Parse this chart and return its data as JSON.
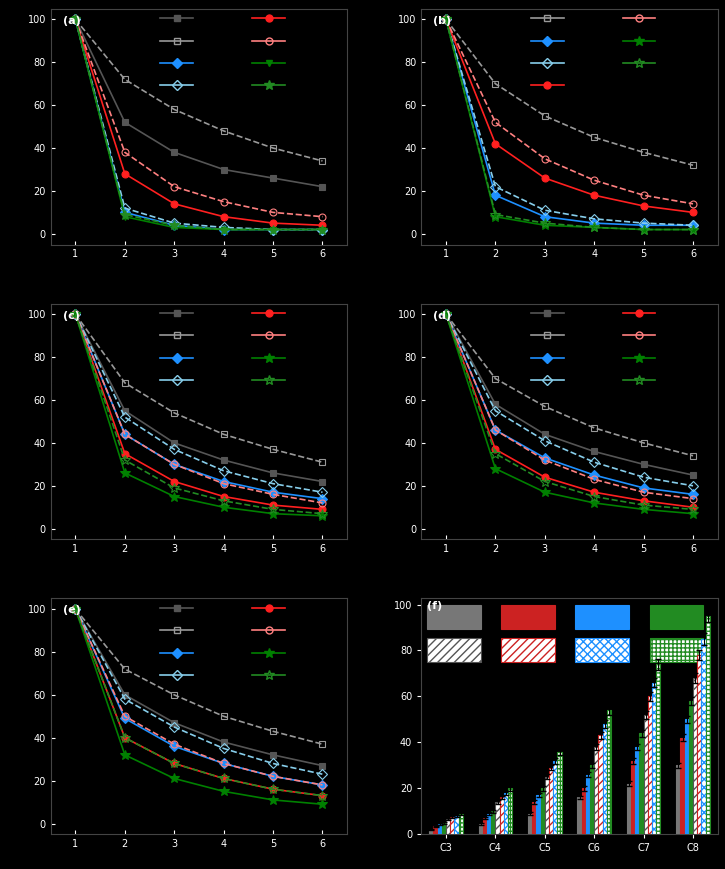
{
  "background": "#000000",
  "x_vals": [
    1,
    2,
    3,
    4,
    5,
    6
  ],
  "panel_a": {
    "series": [
      {
        "y": [
          100,
          52,
          38,
          30,
          26,
          22
        ],
        "color": "#555555",
        "marker": "s",
        "ls": "-",
        "lw": 1.2,
        "ms": 5,
        "mfc": "#555555"
      },
      {
        "y": [
          100,
          72,
          58,
          48,
          40,
          34
        ],
        "color": "#999999",
        "marker": "s",
        "ls": "--",
        "lw": 1.2,
        "ms": 5,
        "mfc": "none"
      },
      {
        "y": [
          100,
          10,
          4,
          2,
          2,
          2
        ],
        "color": "#1E90FF",
        "marker": "D",
        "ls": "-",
        "lw": 1.2,
        "ms": 5,
        "mfc": "#1E90FF"
      },
      {
        "y": [
          100,
          12,
          5,
          3,
          2,
          2
        ],
        "color": "#87CEEB",
        "marker": "D",
        "ls": "--",
        "lw": 1.2,
        "ms": 5,
        "mfc": "none"
      },
      {
        "y": [
          100,
          28,
          14,
          8,
          5,
          4
        ],
        "color": "#FF2020",
        "marker": "o",
        "ls": "-",
        "lw": 1.2,
        "ms": 5,
        "mfc": "#FF2020"
      },
      {
        "y": [
          100,
          38,
          22,
          15,
          10,
          8
        ],
        "color": "#FF8080",
        "marker": "o",
        "ls": "--",
        "lw": 1.2,
        "ms": 5,
        "mfc": "none"
      },
      {
        "y": [
          100,
          8,
          3,
          2,
          2,
          2
        ],
        "color": "#008000",
        "marker": "v",
        "ls": "-",
        "lw": 1.2,
        "ms": 5,
        "mfc": "#008000"
      },
      {
        "y": [
          100,
          9,
          4,
          2,
          2,
          2
        ],
        "color": "#228B22",
        "marker": "*",
        "ls": "--",
        "lw": 1.2,
        "ms": 7,
        "mfc": "#228B22"
      }
    ],
    "legend": [
      {
        "color": "#555555",
        "marker": "s",
        "mfc": "#555555"
      },
      {
        "color": "#999999",
        "marker": "s",
        "mfc": "none"
      },
      {
        "color": "#1E90FF",
        "marker": "D",
        "mfc": "#1E90FF"
      },
      {
        "color": "#87CEEB",
        "marker": "D",
        "mfc": "none"
      },
      {
        "color": "#FF2020",
        "marker": "o",
        "mfc": "#FF2020"
      },
      {
        "color": "#FF8080",
        "marker": "o",
        "mfc": "none"
      },
      {
        "color": "#008000",
        "marker": "v",
        "mfc": "#008000"
      },
      {
        "color": "#228B22",
        "marker": "*",
        "mfc": "#228B22"
      }
    ]
  },
  "panel_b": {
    "series": [
      {
        "y": [
          100,
          70,
          55,
          45,
          38,
          32
        ],
        "color": "#999999",
        "marker": "s",
        "ls": "--",
        "lw": 1.2,
        "ms": 5,
        "mfc": "none"
      },
      {
        "y": [
          100,
          18,
          8,
          5,
          4,
          4
        ],
        "color": "#1E90FF",
        "marker": "D",
        "ls": "-",
        "lw": 1.2,
        "ms": 5,
        "mfc": "#1E90FF"
      },
      {
        "y": [
          100,
          22,
          11,
          7,
          5,
          4
        ],
        "color": "#87CEEB",
        "marker": "D",
        "ls": "--",
        "lw": 1.2,
        "ms": 5,
        "mfc": "none"
      },
      {
        "y": [
          100,
          42,
          26,
          18,
          13,
          10
        ],
        "color": "#FF2020",
        "marker": "o",
        "ls": "-",
        "lw": 1.2,
        "ms": 5,
        "mfc": "#FF2020"
      },
      {
        "y": [
          100,
          52,
          35,
          25,
          18,
          14
        ],
        "color": "#FF8080",
        "marker": "o",
        "ls": "--",
        "lw": 1.2,
        "ms": 5,
        "mfc": "none"
      },
      {
        "y": [
          100,
          8,
          4,
          3,
          2,
          2
        ],
        "color": "#008000",
        "marker": "*",
        "ls": "-",
        "lw": 1.2,
        "ms": 7,
        "mfc": "#008000"
      },
      {
        "y": [
          100,
          9,
          5,
          3,
          2,
          2
        ],
        "color": "#228B22",
        "marker": "*",
        "ls": "--",
        "lw": 1.2,
        "ms": 7,
        "mfc": "none"
      }
    ],
    "legend": [
      {
        "color": "#999999",
        "marker": "s",
        "mfc": "none"
      },
      {
        "color": "#1E90FF",
        "marker": "D",
        "mfc": "#1E90FF"
      },
      {
        "color": "#87CEEB",
        "marker": "D",
        "mfc": "none"
      },
      {
        "color": "#FF2020",
        "marker": "o",
        "mfc": "#FF2020"
      },
      {
        "color": "#FF8080",
        "marker": "o",
        "mfc": "none"
      },
      {
        "color": "#008000",
        "marker": "*",
        "mfc": "#008000"
      },
      {
        "color": "#228B22",
        "marker": "*",
        "mfc": "none"
      }
    ]
  },
  "panel_c": {
    "series": [
      {
        "y": [
          100,
          55,
          40,
          32,
          26,
          22
        ],
        "color": "#555555",
        "marker": "s",
        "ls": "-",
        "lw": 1.2,
        "ms": 5,
        "mfc": "#555555"
      },
      {
        "y": [
          100,
          68,
          54,
          44,
          37,
          31
        ],
        "color": "#999999",
        "marker": "s",
        "ls": "--",
        "lw": 1.2,
        "ms": 5,
        "mfc": "none"
      },
      {
        "y": [
          100,
          44,
          30,
          22,
          17,
          14
        ],
        "color": "#1E90FF",
        "marker": "D",
        "ls": "-",
        "lw": 1.2,
        "ms": 5,
        "mfc": "#1E90FF"
      },
      {
        "y": [
          100,
          52,
          37,
          27,
          21,
          17
        ],
        "color": "#87CEEB",
        "marker": "D",
        "ls": "--",
        "lw": 1.2,
        "ms": 5,
        "mfc": "none"
      },
      {
        "y": [
          100,
          35,
          22,
          15,
          11,
          9
        ],
        "color": "#FF2020",
        "marker": "o",
        "ls": "-",
        "lw": 1.2,
        "ms": 5,
        "mfc": "#FF2020"
      },
      {
        "y": [
          100,
          44,
          30,
          21,
          16,
          12
        ],
        "color": "#FF8080",
        "marker": "o",
        "ls": "--",
        "lw": 1.2,
        "ms": 5,
        "mfc": "none"
      },
      {
        "y": [
          100,
          26,
          15,
          10,
          7,
          6
        ],
        "color": "#008000",
        "marker": "*",
        "ls": "-",
        "lw": 1.2,
        "ms": 7,
        "mfc": "#008000"
      },
      {
        "y": [
          100,
          32,
          19,
          13,
          9,
          7
        ],
        "color": "#228B22",
        "marker": "*",
        "ls": "--",
        "lw": 1.2,
        "ms": 7,
        "mfc": "none"
      }
    ],
    "legend": [
      {
        "color": "#555555",
        "marker": "s",
        "mfc": "#555555"
      },
      {
        "color": "#999999",
        "marker": "s",
        "mfc": "none"
      },
      {
        "color": "#1E90FF",
        "marker": "D",
        "mfc": "#1E90FF"
      },
      {
        "color": "#87CEEB",
        "marker": "D",
        "mfc": "none"
      },
      {
        "color": "#FF2020",
        "marker": "o",
        "mfc": "#FF2020"
      },
      {
        "color": "#FF8080",
        "marker": "o",
        "mfc": "none"
      },
      {
        "color": "#008000",
        "marker": "*",
        "mfc": "#008000"
      },
      {
        "color": "#228B22",
        "marker": "*",
        "mfc": "none"
      }
    ]
  },
  "panel_d": {
    "series": [
      {
        "y": [
          100,
          58,
          44,
          36,
          30,
          25
        ],
        "color": "#555555",
        "marker": "s",
        "ls": "-",
        "lw": 1.2,
        "ms": 5,
        "mfc": "#555555"
      },
      {
        "y": [
          100,
          70,
          57,
          47,
          40,
          34
        ],
        "color": "#999999",
        "marker": "s",
        "ls": "--",
        "lw": 1.2,
        "ms": 5,
        "mfc": "none"
      },
      {
        "y": [
          100,
          46,
          33,
          25,
          19,
          16
        ],
        "color": "#1E90FF",
        "marker": "D",
        "ls": "-",
        "lw": 1.2,
        "ms": 5,
        "mfc": "#1E90FF"
      },
      {
        "y": [
          100,
          55,
          41,
          31,
          24,
          20
        ],
        "color": "#87CEEB",
        "marker": "D",
        "ls": "--",
        "lw": 1.2,
        "ms": 5,
        "mfc": "none"
      },
      {
        "y": [
          100,
          37,
          24,
          17,
          13,
          10
        ],
        "color": "#FF2020",
        "marker": "o",
        "ls": "-",
        "lw": 1.2,
        "ms": 5,
        "mfc": "#FF2020"
      },
      {
        "y": [
          100,
          46,
          32,
          23,
          17,
          14
        ],
        "color": "#FF8080",
        "marker": "o",
        "ls": "--",
        "lw": 1.2,
        "ms": 5,
        "mfc": "none"
      },
      {
        "y": [
          100,
          28,
          17,
          12,
          9,
          7
        ],
        "color": "#008000",
        "marker": "*",
        "ls": "-",
        "lw": 1.2,
        "ms": 7,
        "mfc": "#008000"
      },
      {
        "y": [
          100,
          35,
          22,
          15,
          11,
          9
        ],
        "color": "#228B22",
        "marker": "*",
        "ls": "--",
        "lw": 1.2,
        "ms": 7,
        "mfc": "none"
      }
    ],
    "legend": [
      {
        "color": "#555555",
        "marker": "s",
        "mfc": "#555555"
      },
      {
        "color": "#999999",
        "marker": "s",
        "mfc": "none"
      },
      {
        "color": "#1E90FF",
        "marker": "D",
        "mfc": "#1E90FF"
      },
      {
        "color": "#87CEEB",
        "marker": "D",
        "mfc": "none"
      },
      {
        "color": "#FF2020",
        "marker": "o",
        "mfc": "#FF2020"
      },
      {
        "color": "#FF8080",
        "marker": "o",
        "mfc": "none"
      },
      {
        "color": "#008000",
        "marker": "*",
        "mfc": "#008000"
      },
      {
        "color": "#228B22",
        "marker": "*",
        "mfc": "none"
      }
    ]
  },
  "panel_e": {
    "series": [
      {
        "y": [
          100,
          60,
          47,
          38,
          32,
          27
        ],
        "color": "#555555",
        "marker": "s",
        "ls": "-",
        "lw": 1.2,
        "ms": 5,
        "mfc": "#555555"
      },
      {
        "y": [
          100,
          72,
          60,
          50,
          43,
          37
        ],
        "color": "#999999",
        "marker": "s",
        "ls": "--",
        "lw": 1.2,
        "ms": 5,
        "mfc": "none"
      },
      {
        "y": [
          100,
          49,
          36,
          28,
          22,
          18
        ],
        "color": "#1E90FF",
        "marker": "D",
        "ls": "-",
        "lw": 1.2,
        "ms": 5,
        "mfc": "#1E90FF"
      },
      {
        "y": [
          100,
          58,
          45,
          35,
          28,
          23
        ],
        "color": "#87CEEB",
        "marker": "D",
        "ls": "--",
        "lw": 1.2,
        "ms": 5,
        "mfc": "none"
      },
      {
        "y": [
          100,
          40,
          28,
          21,
          16,
          13
        ],
        "color": "#FF2020",
        "marker": "o",
        "ls": "-",
        "lw": 1.2,
        "ms": 5,
        "mfc": "#FF2020"
      },
      {
        "y": [
          100,
          50,
          37,
          28,
          22,
          18
        ],
        "color": "#FF8080",
        "marker": "o",
        "ls": "--",
        "lw": 1.2,
        "ms": 5,
        "mfc": "none"
      },
      {
        "y": [
          100,
          32,
          21,
          15,
          11,
          9
        ],
        "color": "#008000",
        "marker": "*",
        "ls": "-",
        "lw": 1.2,
        "ms": 7,
        "mfc": "#008000"
      },
      {
        "y": [
          100,
          40,
          28,
          21,
          16,
          13
        ],
        "color": "#228B22",
        "marker": "*",
        "ls": "--",
        "lw": 1.2,
        "ms": 7,
        "mfc": "none"
      }
    ],
    "legend": [
      {
        "color": "#555555",
        "marker": "s",
        "mfc": "#555555"
      },
      {
        "color": "#999999",
        "marker": "s",
        "mfc": "none"
      },
      {
        "color": "#1E90FF",
        "marker": "D",
        "mfc": "#1E90FF"
      },
      {
        "color": "#87CEEB",
        "marker": "D",
        "mfc": "none"
      },
      {
        "color": "#FF2020",
        "marker": "o",
        "mfc": "#FF2020"
      },
      {
        "color": "#FF8080",
        "marker": "o",
        "mfc": "none"
      },
      {
        "color": "#008000",
        "marker": "*",
        "mfc": "#008000"
      },
      {
        "color": "#228B22",
        "marker": "*",
        "mfc": "none"
      }
    ]
  },
  "bar_x_labels": [
    "C3",
    "C4",
    "C5",
    "C6",
    "C7",
    "C8"
  ],
  "bar_groups": [
    {
      "color": "#777777",
      "hatch": "",
      "facecolor": "#777777",
      "values": [
        2.0,
        4.5,
        9.0,
        16.0,
        22.0,
        30.0
      ],
      "err": [
        0.2,
        0.4,
        0.6,
        0.8,
        1.0,
        1.2
      ]
    },
    {
      "color": "#CC2222",
      "hatch": "",
      "facecolor": "#CC2222",
      "values": [
        3.5,
        7.0,
        14.0,
        20.0,
        32.0,
        42.0
      ],
      "err": [
        0.3,
        0.5,
        0.8,
        1.0,
        1.3,
        1.5
      ]
    },
    {
      "color": "#1E90FF",
      "hatch": "",
      "facecolor": "#1E90FF",
      "values": [
        4.5,
        9.0,
        17.0,
        26.0,
        38.0,
        50.0
      ],
      "err": [
        0.3,
        0.6,
        0.9,
        1.1,
        1.4,
        1.6
      ]
    },
    {
      "color": "#228B22",
      "hatch": "",
      "facecolor": "#228B22",
      "values": [
        5.0,
        10.0,
        20.0,
        30.0,
        44.0,
        58.0
      ],
      "err": [
        0.4,
        0.6,
        1.0,
        1.2,
        1.5,
        1.8
      ]
    },
    {
      "color": "#555555",
      "hatch": "////",
      "facecolor": "white",
      "values": [
        6.5,
        14.0,
        25.0,
        38.0,
        52.0,
        68.0
      ],
      "err": [
        0.4,
        0.7,
        1.1,
        1.4,
        1.7,
        2.0
      ]
    },
    {
      "color": "#CC2222",
      "hatch": "////",
      "facecolor": "white",
      "values": [
        7.5,
        16.0,
        29.0,
        43.0,
        60.0,
        78.0
      ],
      "err": [
        0.5,
        0.8,
        1.2,
        1.5,
        1.8,
        2.2
      ]
    },
    {
      "color": "#1E90FF",
      "hatch": "xxxx",
      "facecolor": "white",
      "values": [
        8.0,
        18.0,
        32.0,
        48.0,
        66.0,
        85.0
      ],
      "err": [
        0.5,
        0.9,
        1.3,
        1.7,
        2.0,
        2.5
      ]
    },
    {
      "color": "#228B22",
      "hatch": "++++",
      "facecolor": "white",
      "values": [
        9.0,
        20.0,
        36.0,
        54.0,
        74.0,
        95.0
      ],
      "err": [
        0.6,
        1.0,
        1.5,
        1.9,
        2.3,
        2.8
      ]
    }
  ],
  "bar_legend_patches": [
    {
      "facecolor": "#777777",
      "hatch": "",
      "label": ""
    },
    {
      "facecolor": "#CC2222",
      "hatch": "",
      "label": ""
    },
    {
      "facecolor": "#1E90FF",
      "hatch": "",
      "label": ""
    },
    {
      "facecolor": "#228B22",
      "hatch": "",
      "label": ""
    },
    {
      "facecolor": "white",
      "hatch": "////",
      "edgecolor": "#555555",
      "label": ""
    },
    {
      "facecolor": "white",
      "hatch": "////",
      "edgecolor": "#CC2222",
      "label": ""
    },
    {
      "facecolor": "white",
      "hatch": "xxxx",
      "edgecolor": "#1E90FF",
      "label": ""
    },
    {
      "facecolor": "white",
      "hatch": "++++",
      "edgecolor": "#228B22",
      "label": ""
    }
  ]
}
